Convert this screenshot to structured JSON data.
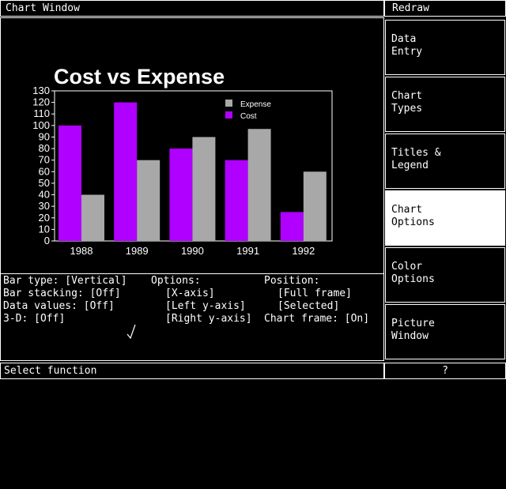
{
  "window": {
    "title": "Chart Window",
    "redraw_label": "Redraw"
  },
  "menu": {
    "items": [
      {
        "id": "data-entry",
        "line1": "Data",
        "line2": "Entry",
        "active": false
      },
      {
        "id": "chart-types",
        "line1": "Chart",
        "line2": "Types",
        "active": false
      },
      {
        "id": "titles-legend",
        "line1": "Titles &",
        "line2": "Legend",
        "active": false
      },
      {
        "id": "chart-options",
        "line1": "Chart",
        "line2": "Options",
        "active": true
      },
      {
        "id": "color-options",
        "line1": "Color",
        "line2": "Options",
        "active": false
      },
      {
        "id": "picture-window",
        "line1": "Picture",
        "line2": "Window",
        "active": false
      }
    ]
  },
  "options": {
    "bar_type": "Bar type: [Vertical]",
    "bar_stacking": "Bar stacking: [Off]",
    "data_values": "Data values: [Off]",
    "three_d": "3-D: [Off]",
    "options_header": "Options:",
    "x_axis": "[X-axis]",
    "left_y_axis": "[Left y-axis]",
    "right_y_axis": "[Right y-axis]",
    "position_header": "Position:",
    "full_frame": "[Full frame]",
    "selected": "[Selected]",
    "chart_frame": "Chart frame: [On]"
  },
  "status": {
    "text": "Select function",
    "help": "?"
  },
  "colors": {
    "cost": "#b000ff",
    "expense": "#a8a8a8",
    "background": "#000000",
    "foreground": "#ffffff"
  },
  "chart_data": {
    "type": "bar",
    "title": "Cost vs Expense",
    "categories": [
      "1988",
      "1989",
      "1990",
      "1991",
      "1992"
    ],
    "series": [
      {
        "name": "Cost",
        "values": [
          100,
          120,
          80,
          70,
          25
        ]
      },
      {
        "name": "Expense",
        "values": [
          40,
          70,
          90,
          97,
          60
        ]
      }
    ],
    "ylim": [
      0,
      130
    ],
    "yticks": [
      "0",
      "10",
      "20",
      "30",
      "40",
      "50",
      "60",
      "70",
      "80",
      "90",
      "100",
      "110",
      "120",
      "130"
    ],
    "legend_order": [
      "Expense",
      "Cost"
    ],
    "legend_position": "top-right",
    "grid": false
  }
}
